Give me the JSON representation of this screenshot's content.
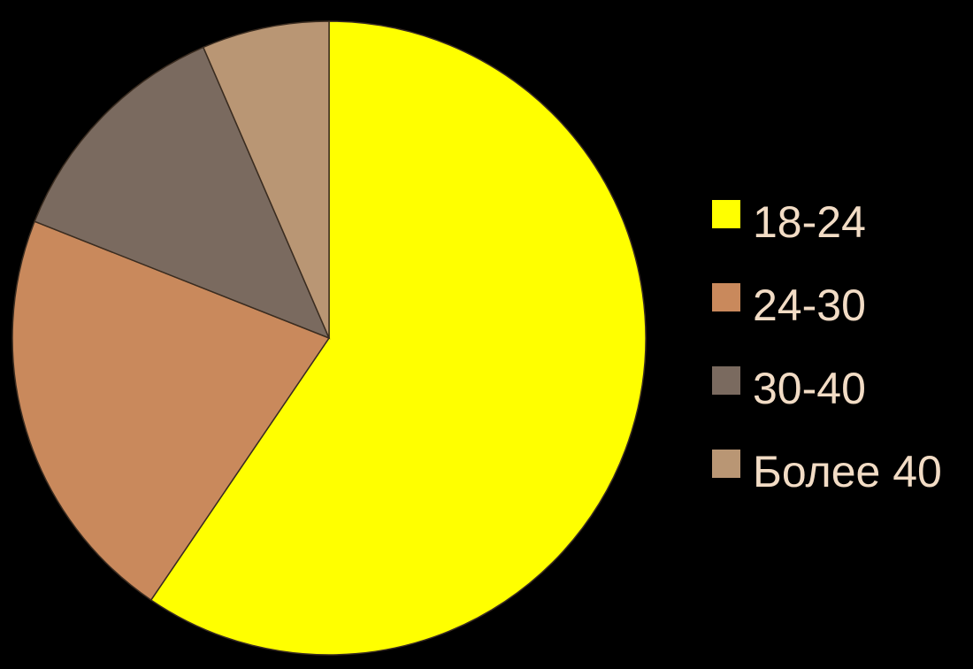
{
  "chart_data": {
    "type": "pie",
    "title": "",
    "start_angle_deg": 0,
    "direction": "clockwise",
    "legend_position": "right",
    "slices": [
      {
        "label": "18-24",
        "value": 59.5,
        "color": "#ffff00"
      },
      {
        "label": "24-30",
        "value": 21.5,
        "color": "#c9895c"
      },
      {
        "label": "30-40",
        "value": 12.5,
        "color": "#7a6a5f"
      },
      {
        "label": "Более 40",
        "value": 6.5,
        "color": "#b99674"
      }
    ]
  }
}
